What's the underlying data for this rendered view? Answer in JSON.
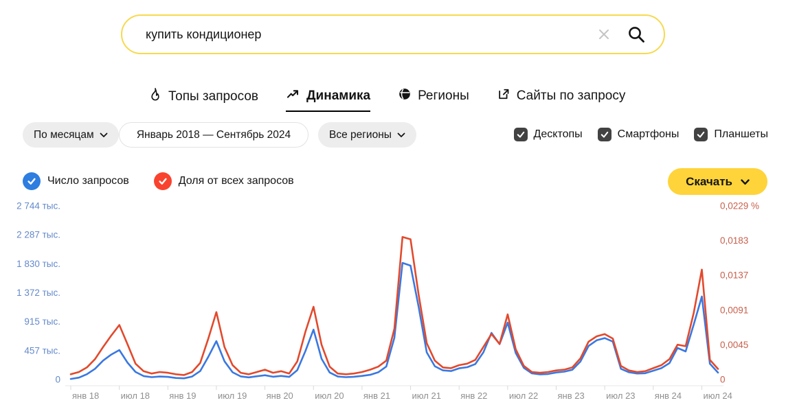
{
  "search": {
    "value": "купить кондиционер"
  },
  "tabs": [
    {
      "label": "Топы запросов",
      "icon": "flame-icon",
      "active": false
    },
    {
      "label": "Динамика",
      "icon": "trend-up-icon",
      "active": true
    },
    {
      "label": "Регионы",
      "icon": "globe-icon",
      "active": false
    },
    {
      "label": "Сайты по запросу",
      "icon": "external-link-icon",
      "active": false
    }
  ],
  "filters": {
    "period": "По месяцам",
    "date_range": "Январь 2018 — Сентябрь 2024",
    "region": "Все регионы",
    "devices": [
      {
        "label": "Десктопы",
        "checked": true
      },
      {
        "label": "Смартфоны",
        "checked": true
      },
      {
        "label": "Планшеты",
        "checked": true
      }
    ]
  },
  "legend": [
    {
      "label": "Число запросов",
      "color": "#2e7de0",
      "enabled": true
    },
    {
      "label": "Доля от всех запросов",
      "color": "#f9432e",
      "enabled": true
    }
  ],
  "download_button": {
    "label": "Скачать"
  },
  "colors": {
    "search_border": "#f7d94e",
    "accent_yellow": "#ffd43a",
    "blue_line": "#3a78e0",
    "red_line": "#e2492c",
    "blue_axis_labels": "#6489cc",
    "red_axis_labels": "#c75f4b",
    "x_axis_labels": "#8f8f8f",
    "checkbox": "#424242"
  },
  "chart_data": {
    "type": "line",
    "x_interval": "month",
    "x_start": "2018-01",
    "x_end": "2024-09",
    "grid": false,
    "legend_position": "top-left",
    "x_tick_labels": [
      "янв 18",
      "июл 18",
      "янв 19",
      "июл 19",
      "янв 20",
      "июл 20",
      "янв 21",
      "июл 21",
      "янв 22",
      "июл 22",
      "янв 23",
      "июл 23",
      "янв 24",
      "июл 24"
    ],
    "left_axis": {
      "unit": "тыс.",
      "max": 2744,
      "tick_labels": [
        "2 744 тыс.",
        "2 287 тыс.",
        "1 830 тыс.",
        "1 372 тыс.",
        "915 тыс.",
        "457 тыс.",
        "0"
      ]
    },
    "right_axis": {
      "unit": "%",
      "max": 0.0229,
      "tick_labels": [
        "0,0229 %",
        "0,0183",
        "0,0137",
        "0,0091",
        "0,0045",
        "0"
      ]
    },
    "series": [
      {
        "name": "Число запросов",
        "axis": "left",
        "unit": "тыс.",
        "color": "#3a78e0",
        "values": [
          10,
          30,
          85,
          170,
          300,
          395,
          466,
          270,
          120,
          55,
          38,
          48,
          42,
          25,
          20,
          48,
          135,
          360,
          607,
          290,
          115,
          50,
          35,
          52,
          68,
          45,
          58,
          42,
          150,
          450,
          790,
          330,
          112,
          48,
          38,
          44,
          58,
          75,
          115,
          205,
          660,
          1844,
          1800,
          1150,
          430,
          210,
          145,
          135,
          178,
          195,
          245,
          430,
          737,
          560,
          900,
          420,
          185,
          98,
          82,
          88,
          112,
          125,
          155,
          285,
          530,
          620,
          655,
          600,
          170,
          115,
          95,
          100,
          140,
          180,
          260,
          500,
          445,
          870,
          1312,
          250,
          110
        ]
      },
      {
        "name": "Доля от всех запросов",
        "axis": "right",
        "unit": "%",
        "color": "#e2492c",
        "values": [
          0.0007,
          0.001,
          0.0016,
          0.0027,
          0.0043,
          0.0058,
          0.0072,
          0.0047,
          0.0021,
          0.0011,
          0.0008,
          0.001,
          0.0009,
          0.0007,
          0.0006,
          0.001,
          0.0022,
          0.0054,
          0.0089,
          0.0043,
          0.0019,
          0.0009,
          0.0007,
          0.001,
          0.0013,
          0.0009,
          0.0011,
          0.0008,
          0.0024,
          0.0063,
          0.0096,
          0.0046,
          0.0017,
          0.0008,
          0.0007,
          0.0008,
          0.001,
          0.0013,
          0.0017,
          0.0025,
          0.0067,
          0.0188,
          0.0185,
          0.0112,
          0.0048,
          0.0025,
          0.0016,
          0.0015,
          0.0019,
          0.0021,
          0.0026,
          0.0043,
          0.006,
          0.0047,
          0.0086,
          0.004,
          0.0018,
          0.001,
          0.0009,
          0.001,
          0.0012,
          0.0013,
          0.0016,
          0.0028,
          0.005,
          0.0057,
          0.006,
          0.0054,
          0.0018,
          0.0012,
          0.001,
          0.0011,
          0.0015,
          0.0019,
          0.0027,
          0.0046,
          0.0044,
          0.0088,
          0.0145,
          0.0026,
          0.0014
        ]
      }
    ]
  }
}
